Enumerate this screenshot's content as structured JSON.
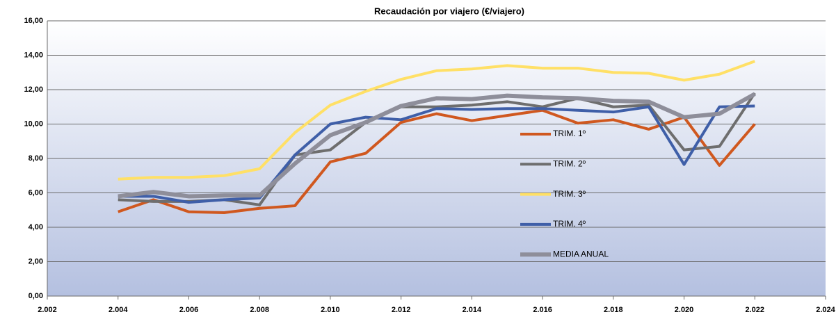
{
  "chart_data": {
    "type": "line",
    "title": "Recaudación por viajero (€/viajero)",
    "x": [
      2004,
      2005,
      2006,
      2007,
      2008,
      2009,
      2010,
      2011,
      2012,
      2013,
      2014,
      2015,
      2016,
      2017,
      2018,
      2019,
      2020,
      2021,
      2022
    ],
    "series": [
      {
        "name": "TRIM. 1º",
        "color": "#d0581f",
        "values": [
          4.9,
          5.6,
          4.9,
          4.85,
          5.1,
          5.25,
          7.8,
          8.3,
          10.1,
          10.6,
          10.2,
          10.5,
          10.8,
          10.05,
          10.25,
          9.7,
          10.4,
          7.6,
          10.0
        ]
      },
      {
        "name": "TRIM. 2º",
        "color": "#6e6e6e",
        "values": [
          5.6,
          5.5,
          5.5,
          5.6,
          5.3,
          8.2,
          8.5,
          10.1,
          11.0,
          11.0,
          11.1,
          11.3,
          11.0,
          11.5,
          11.0,
          11.1,
          8.5,
          8.7,
          11.8
        ]
      },
      {
        "name": "TRIM. 3º",
        "color": "#ffe066",
        "values": [
          6.8,
          6.9,
          6.9,
          7.0,
          7.4,
          9.5,
          11.1,
          11.9,
          12.6,
          13.1,
          13.2,
          13.4,
          13.25,
          13.25,
          13.0,
          12.95,
          12.55,
          12.9,
          13.65
        ]
      },
      {
        "name": "TRIM. 4º",
        "color": "#3f5fa8",
        "values": [
          5.8,
          5.8,
          5.45,
          5.6,
          5.7,
          8.2,
          10.0,
          10.4,
          10.25,
          10.9,
          10.85,
          10.9,
          10.9,
          10.8,
          10.7,
          11.0,
          7.65,
          11.0,
          11.05
        ]
      },
      {
        "name": "MEDIA ANUAL",
        "color": "#8e8e9a",
        "values": [
          5.8,
          6.05,
          5.8,
          5.85,
          5.85,
          7.7,
          9.35,
          10.1,
          11.05,
          11.5,
          11.45,
          11.65,
          11.55,
          11.5,
          11.35,
          11.3,
          10.4,
          10.6,
          11.75
        ]
      }
    ],
    "xlim": [
      2002,
      2024
    ],
    "xticks": [
      {
        "value": 2002,
        "label": "2.002"
      },
      {
        "value": 2004,
        "label": "2.004"
      },
      {
        "value": 2006,
        "label": "2.006"
      },
      {
        "value": 2008,
        "label": "2.008"
      },
      {
        "value": 2010,
        "label": "2.010"
      },
      {
        "value": 2012,
        "label": "2.012"
      },
      {
        "value": 2014,
        "label": "2.014"
      },
      {
        "value": 2016,
        "label": "2.016"
      },
      {
        "value": 2018,
        "label": "2.018"
      },
      {
        "value": 2020,
        "label": "2.020"
      },
      {
        "value": 2022,
        "label": "2.022"
      },
      {
        "value": 2024,
        "label": "2.024"
      }
    ],
    "ylim": [
      0,
      16
    ],
    "yticks": [
      {
        "value": 0,
        "label": "0,00"
      },
      {
        "value": 2,
        "label": "2,00"
      },
      {
        "value": 4,
        "label": "4,00"
      },
      {
        "value": 6,
        "label": "6,00"
      },
      {
        "value": 8,
        "label": "8,00"
      },
      {
        "value": 10,
        "label": "10,00"
      },
      {
        "value": 12,
        "label": "12,00"
      },
      {
        "value": 14,
        "label": "14,00"
      },
      {
        "value": 16,
        "label": "16,00"
      }
    ],
    "grid": true
  }
}
